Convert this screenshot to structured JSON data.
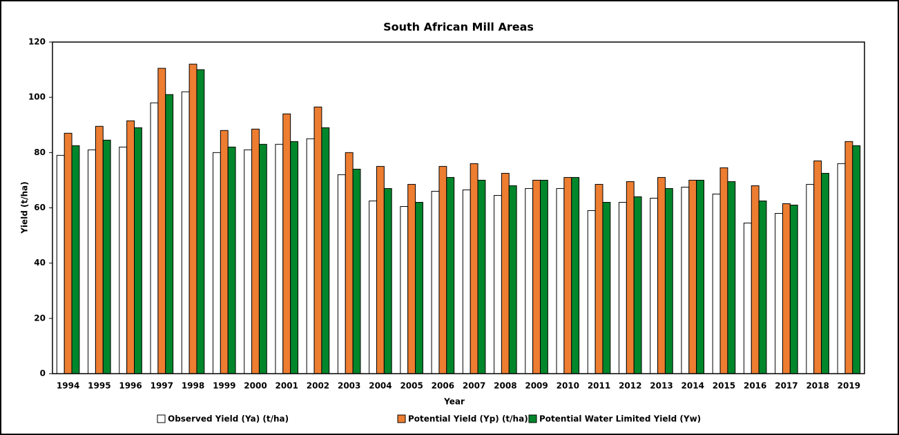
{
  "chart_data": {
    "type": "bar",
    "title": "South African Mill Areas",
    "x_label": "Year",
    "y_label": "Yield (t/ha)",
    "categories": [
      "1994",
      "1995",
      "1996",
      "1997",
      "1998",
      "1999",
      "2000",
      "2001",
      "2002",
      "2003",
      "2004",
      "2005",
      "2006",
      "2007",
      "2008",
      "2009",
      "2010",
      "2011",
      "2012",
      "2013",
      "2014",
      "2015",
      "2016",
      "2017",
      "2018",
      "2019"
    ],
    "series": [
      {
        "name": "Observed Yield (Ya) (t/ha)",
        "color": "#ffffff",
        "values": [
          79,
          81,
          82,
          98,
          102,
          80,
          81,
          83,
          85,
          72,
          62.5,
          60.5,
          66,
          66.5,
          64.5,
          67,
          67,
          59,
          62,
          63.5,
          67.5,
          65,
          54.5,
          58,
          68.5,
          76
        ]
      },
      {
        "name": "Potential Yield (Yp) (t/ha)",
        "color": "#ed7d31",
        "values": [
          87,
          89.5,
          91.5,
          110.5,
          112,
          88,
          88.5,
          94,
          96.5,
          80,
          75,
          68.5,
          75,
          76,
          72.5,
          70,
          71,
          68.5,
          69.5,
          71,
          70,
          74.5,
          68,
          61.5,
          77,
          84
        ]
      },
      {
        "name": "Potential Water Limited Yield (Yw)",
        "color": "#00862b",
        "values": [
          82.5,
          84.5,
          89,
          101,
          110,
          82,
          83,
          84,
          89,
          74,
          67,
          62,
          71,
          70,
          68,
          70,
          71,
          62,
          64,
          67,
          70,
          69.5,
          62.5,
          61,
          72.5,
          82.5
        ]
      }
    ],
    "ylim": [
      0,
      120
    ],
    "yticks": [
      0,
      20,
      40,
      60,
      80,
      100,
      120
    ],
    "grid": false,
    "legend": "bottom"
  }
}
